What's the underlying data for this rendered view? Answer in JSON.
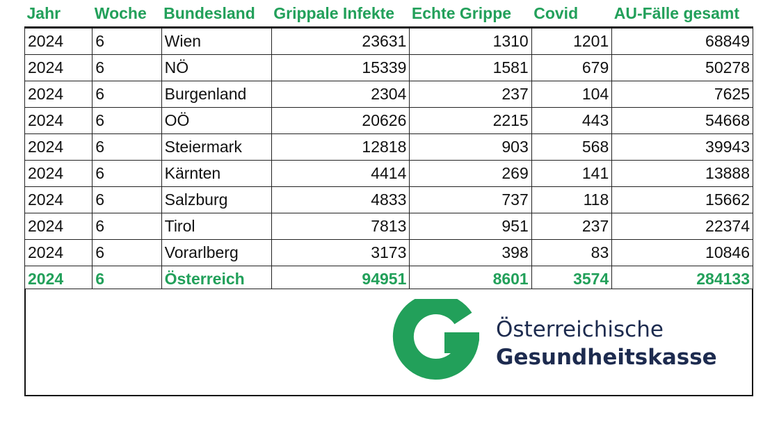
{
  "table": {
    "headers": [
      "Jahr",
      "Woche",
      "Bundesland",
      "Grippale Infekte",
      "Echte Grippe",
      "Covid",
      "AU-Fälle gesamt"
    ],
    "rows": [
      [
        "2024",
        "6",
        "Wien",
        "23631",
        "1310",
        "1201",
        "68849"
      ],
      [
        "2024",
        "6",
        "NÖ",
        "15339",
        "1581",
        "679",
        "50278"
      ],
      [
        "2024",
        "6",
        "Burgenland",
        "2304",
        "237",
        "104",
        "7625"
      ],
      [
        "2024",
        "6",
        "OÖ",
        "20626",
        "2215",
        "443",
        "54668"
      ],
      [
        "2024",
        "6",
        "Steiermark",
        "12818",
        "903",
        "568",
        "39943"
      ],
      [
        "2024",
        "6",
        "Kärnten",
        "4414",
        "269",
        "141",
        "13888"
      ],
      [
        "2024",
        "6",
        "Salzburg",
        "4833",
        "737",
        "118",
        "15662"
      ],
      [
        "2024",
        "6",
        "Tirol",
        "7813",
        "951",
        "237",
        "22374"
      ],
      [
        "2024",
        "6",
        "Vorarlberg",
        "3173",
        "398",
        "83",
        "10846"
      ]
    ],
    "total": [
      "2024",
      "6",
      "Österreich",
      "94951",
      "8601",
      "3574",
      "284133"
    ]
  },
  "logo": {
    "line1": "Österreichische",
    "line2": "Gesundheitskasse",
    "mark_color": "#22a05a",
    "text_color": "#1d2b4f"
  },
  "colors": {
    "accent": "#22a05a",
    "border": "#111111"
  }
}
